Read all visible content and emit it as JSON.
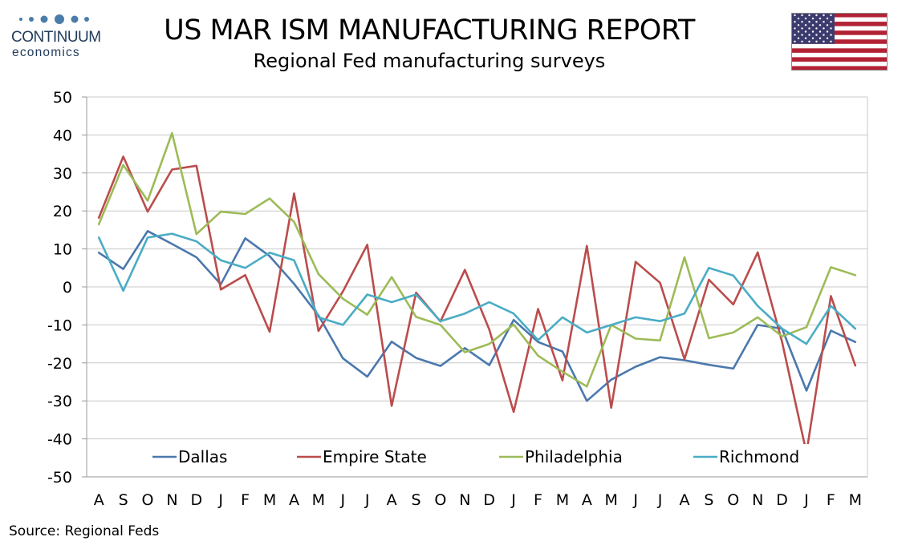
{
  "header": {
    "brand": "CONTINUUM",
    "brand_sub": "economics",
    "title": "US MAR ISM MANUFACTURING REPORT",
    "subtitle": "Regional Fed manufacturing surveys"
  },
  "footer": {
    "source": "Source: Regional Feds"
  },
  "colors": {
    "dallas": "#4a78ad",
    "empire": "#bb4c4c",
    "philadelphia": "#9dbb58",
    "richmond": "#4aacc5",
    "grid": "#c8c8c8",
    "brand": "#1f3a5a"
  },
  "chart_data": {
    "type": "line",
    "title": "Regional Fed manufacturing surveys",
    "xlabel": "",
    "ylabel": "",
    "ylim": [
      -50,
      50
    ],
    "yticks": [
      -50,
      -40,
      -30,
      -20,
      -10,
      0,
      10,
      20,
      30,
      40,
      50
    ],
    "grid": true,
    "legend_position": "bottom",
    "categories": [
      "A",
      "S",
      "O",
      "N",
      "D",
      "J",
      "F",
      "M",
      "A",
      "M",
      "J",
      "J",
      "A",
      "S",
      "O",
      "N",
      "D",
      "J",
      "F",
      "M",
      "A",
      "M",
      "J",
      "J",
      "A",
      "S",
      "O",
      "N",
      "D",
      "J",
      "F",
      "M"
    ],
    "series": [
      {
        "name": "Dallas",
        "color_key": "dallas",
        "values": [
          9,
          4.7,
          14.7,
          11.3,
          7.8,
          0.7,
          12.8,
          8.1,
          0.8,
          -7.5,
          -18.8,
          -23.6,
          -14.4,
          -18.7,
          -20.8,
          -16.1,
          -20.6,
          -8.7,
          -14.5,
          -17.0,
          -30.0,
          -24.4,
          -21.0,
          -18.5,
          -19.3,
          -20.5,
          -21.5,
          -10.0,
          -11.0,
          -27.3,
          -11.5,
          -14.5
        ]
      },
      {
        "name": "Empire State",
        "color_key": "empire",
        "values": [
          18.2,
          34.3,
          19.8,
          30.9,
          31.9,
          -0.7,
          3.1,
          -11.8,
          24.6,
          -11.6,
          -1.2,
          11.1,
          -31.3,
          -1.5,
          -9.1,
          4.5,
          -11.2,
          -32.9,
          -5.8,
          -24.6,
          10.8,
          -31.8,
          6.6,
          1.1,
          -19.0,
          1.9,
          -4.6,
          9.1,
          -14.5,
          -43.7,
          -2.4,
          -20.7
        ]
      },
      {
        "name": "Philadelphia",
        "color_key": "philadelphia",
        "values": [
          16.5,
          32.1,
          22.7,
          40.5,
          13.9,
          19.8,
          19.2,
          23.3,
          17.1,
          3.4,
          -3.1,
          -7.3,
          2.6,
          -7.9,
          -10.0,
          -17.2,
          -15.0,
          -9.9,
          -18.1,
          -22.3,
          -26.2,
          -10.0,
          -13.6,
          -14.1,
          7.8,
          -13.5,
          -12.0,
          -8.0,
          -13.0,
          -10.6,
          5.2,
          3.1
        ]
      },
      {
        "name": "Richmond",
        "color_key": "richmond",
        "values": [
          13.0,
          -1.0,
          13.0,
          14.0,
          12.0,
          7.0,
          5.0,
          9.0,
          7.0,
          -8.0,
          -10.0,
          -2.0,
          -4.0,
          -2.0,
          -9.0,
          -7.0,
          -4.0,
          -7.0,
          -14.0,
          -8.0,
          -12.0,
          -10.0,
          -8.0,
          -9.0,
          -7.0,
          5.0,
          3.0,
          -5.0,
          -11.0,
          -15.0,
          -5.0,
          -11.0
        ]
      }
    ]
  }
}
